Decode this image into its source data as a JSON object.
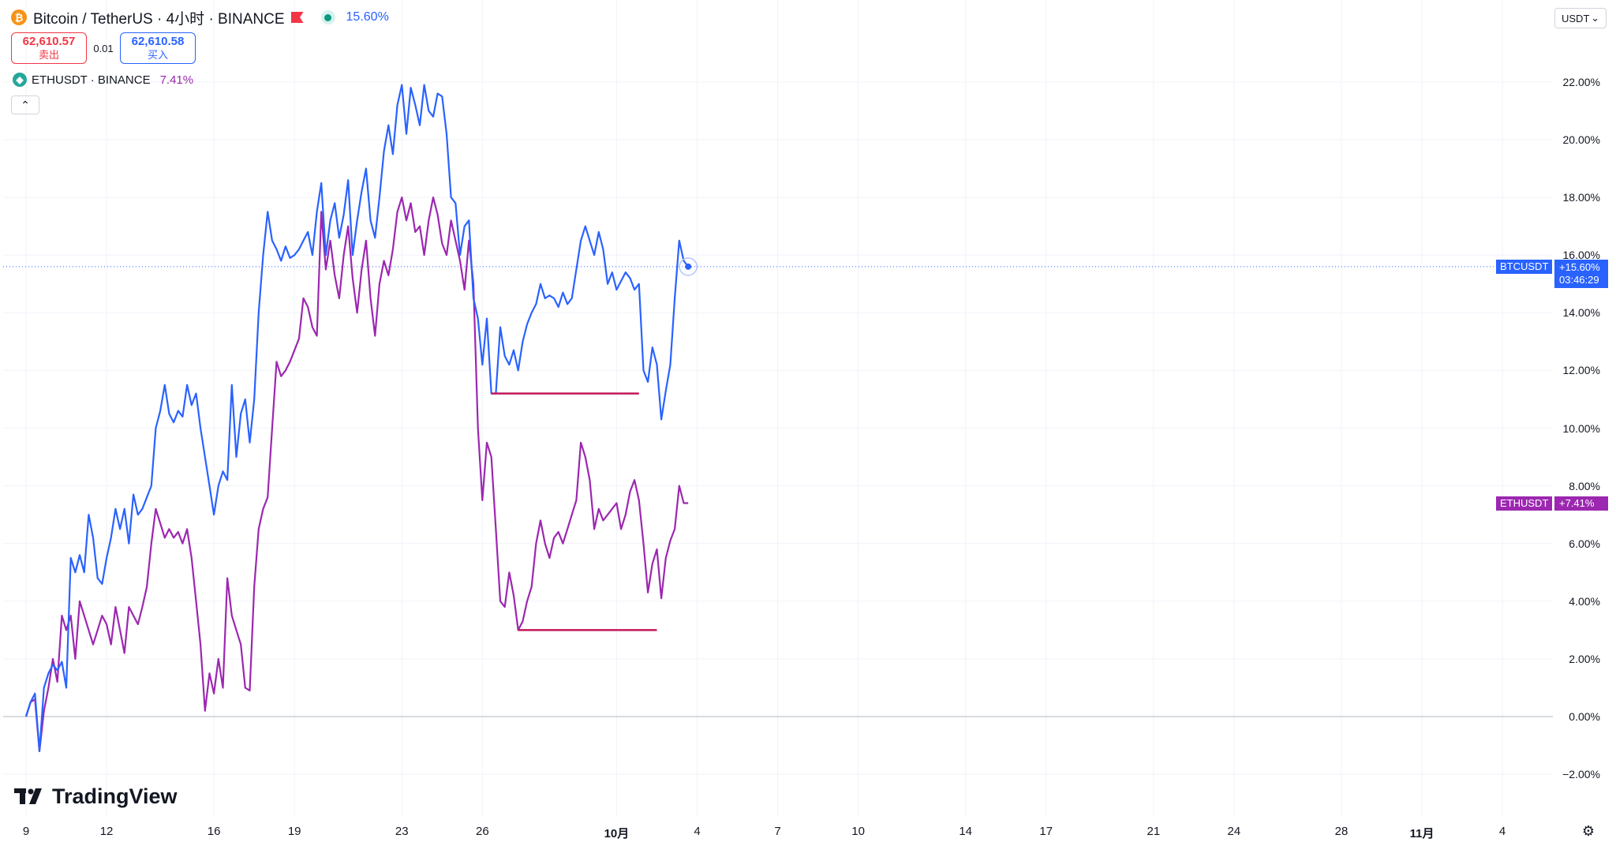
{
  "header": {
    "symbol_title": "Bitcoin / TetherUS · 4小时 · BINANCE",
    "change_pct": "15.60%",
    "bid": {
      "price": "62,610.57",
      "label": "卖出"
    },
    "spread": "0.01",
    "ask": {
      "price": "62,610.58",
      "label": "买入"
    },
    "compare_symbol": "ETHUSDT · BINANCE",
    "compare_pct": "7.41%",
    "collapse_icon": "chevron-up-icon",
    "currency": "USDT"
  },
  "brand": "TradingView",
  "chart_data": {
    "type": "line",
    "y_unit": "%",
    "ylim": [
      -2.8,
      22.8
    ],
    "y_ticks": [
      "22.00%",
      "20.00%",
      "18.00%",
      "16.00%",
      "14.00%",
      "12.00%",
      "10.00%",
      "8.00%",
      "6.00%",
      "4.00%",
      "2.00%",
      "0.00%",
      "−2.00%"
    ],
    "y_tick_values": [
      22,
      20,
      18,
      16,
      14,
      12,
      10,
      8,
      6,
      4,
      2,
      0,
      -2
    ],
    "x_ticks": [
      "9",
      "12",
      "16",
      "19",
      "23",
      "26",
      "10月",
      "4",
      "7",
      "10",
      "14",
      "17",
      "21",
      "24",
      "28",
      "11月",
      "4"
    ],
    "x_tick_bars": [
      0,
      18,
      42,
      60,
      84,
      102,
      132,
      150,
      168,
      186,
      210,
      228,
      252,
      270,
      294,
      312,
      330
    ],
    "baseline": 0,
    "series": [
      {
        "name": "BTCUSDT",
        "color": "#2962ff",
        "last_label": "+15.60%",
        "countdown": "03:46:29",
        "values": [
          0,
          0.5,
          0.8,
          -1.2,
          1.0,
          1.5,
          1.8,
          1.6,
          1.9,
          1.0,
          5.5,
          5.0,
          5.6,
          5.0,
          7.0,
          6.2,
          4.8,
          4.6,
          5.5,
          6.2,
          7.2,
          6.5,
          7.2,
          6.0,
          7.7,
          7.0,
          7.2,
          7.6,
          8.0,
          10.0,
          10.6,
          11.5,
          10.5,
          10.2,
          10.6,
          10.4,
          11.5,
          10.8,
          11.2,
          10.0,
          9.0,
          8.0,
          7.0,
          8.0,
          8.5,
          8.2,
          11.5,
          9.0,
          10.5,
          11.0,
          9.5,
          11.0,
          14.0,
          16.0,
          17.5,
          16.5,
          16.2,
          15.8,
          16.3,
          15.9,
          16.0,
          16.2,
          16.5,
          16.8,
          16.0,
          17.5,
          18.5,
          16.0,
          17.2,
          17.8,
          16.6,
          17.4,
          18.6,
          16.0,
          17.2,
          18.2,
          19.0,
          17.2,
          16.6,
          18.0,
          19.6,
          20.5,
          19.5,
          21.2,
          21.9,
          20.2,
          21.8,
          21.2,
          20.5,
          21.9,
          21.0,
          20.8,
          21.6,
          21.5,
          20.2,
          18.0,
          17.8,
          16.0,
          17.0,
          17.2,
          14.5,
          13.8,
          12.2,
          13.8,
          11.2,
          11.2,
          13.5,
          12.5,
          12.2,
          12.7,
          12.0,
          13.0,
          13.6,
          14.0,
          14.3,
          15.0,
          14.5,
          14.6,
          14.5,
          14.2,
          14.7,
          14.3,
          14.5,
          15.5,
          16.5,
          17.0,
          16.5,
          16.0,
          16.8,
          16.2,
          15.0,
          15.4,
          14.8,
          15.1,
          15.4,
          15.2,
          14.8,
          15.0,
          12.0,
          11.6,
          12.8,
          12.2,
          10.3,
          11.3,
          12.2,
          14.5,
          16.5,
          15.8,
          15.6
        ],
        "values_eth": [
          0,
          0.5,
          0.6,
          -1.2,
          0.2,
          1.0,
          2.0,
          1.2,
          3.5,
          3.0,
          3.5,
          2.0,
          4.0,
          3.5,
          3.0,
          2.5,
          3.0,
          3.5,
          3.2,
          2.5,
          3.8,
          3.0,
          2.2,
          3.8,
          3.5,
          3.2,
          3.8,
          4.5,
          6.0,
          7.2,
          6.7,
          6.2,
          6.5,
          6.2,
          6.4,
          6.0,
          6.5,
          5.5,
          4.0,
          2.5,
          0.2,
          1.5,
          0.8,
          2.0,
          1.0,
          4.8,
          3.5,
          3.0,
          2.5,
          1.0,
          0.9,
          4.5,
          6.5,
          7.2,
          7.6,
          10.0,
          12.3,
          11.8,
          12.0,
          12.3,
          12.7,
          13.1,
          14.5,
          14.2,
          13.5,
          13.2,
          17.5,
          15.5,
          16.5,
          15.3,
          14.5,
          16.0,
          17.0,
          15.2,
          14.0,
          15.5,
          16.5,
          14.5,
          13.2,
          15.0,
          15.8,
          15.3,
          16.2,
          17.5,
          18.0,
          17.2,
          17.8,
          16.8,
          17.0,
          16.0,
          17.2,
          18.0,
          17.4,
          16.4,
          16.0,
          17.2,
          16.5,
          15.8,
          14.8,
          16.5,
          15.0,
          10.0,
          7.5,
          9.5,
          9.0,
          6.5,
          4.0,
          3.8,
          5.0,
          4.2,
          3.0,
          3.3,
          4.0,
          4.5,
          6.0,
          6.8,
          6.0,
          5.5,
          6.2,
          6.4,
          6.0,
          6.5,
          7.0,
          7.5,
          9.5,
          9.0,
          8.2,
          6.5,
          7.2,
          6.8,
          7.0,
          7.2,
          7.4,
          6.5,
          7.0,
          7.8,
          8.2,
          7.5,
          6.0,
          4.3,
          5.3,
          5.8,
          4.1,
          5.5,
          6.1,
          6.5,
          8.0,
          7.4,
          7.4
        ]
      },
      {
        "name": "ETHUSDT",
        "color": "#9c27b0",
        "last_label": "+7.41%"
      }
    ],
    "annotations": [
      {
        "type": "horizontal-segment",
        "color": "#c2185b",
        "y": 11.2,
        "from_bar": 104,
        "to_bar": 137
      },
      {
        "type": "horizontal-segment",
        "color": "#c2185b",
        "y": 3.0,
        "from_bar": 110,
        "to_bar": 141
      }
    ],
    "grid": true,
    "legend": "top-left"
  }
}
